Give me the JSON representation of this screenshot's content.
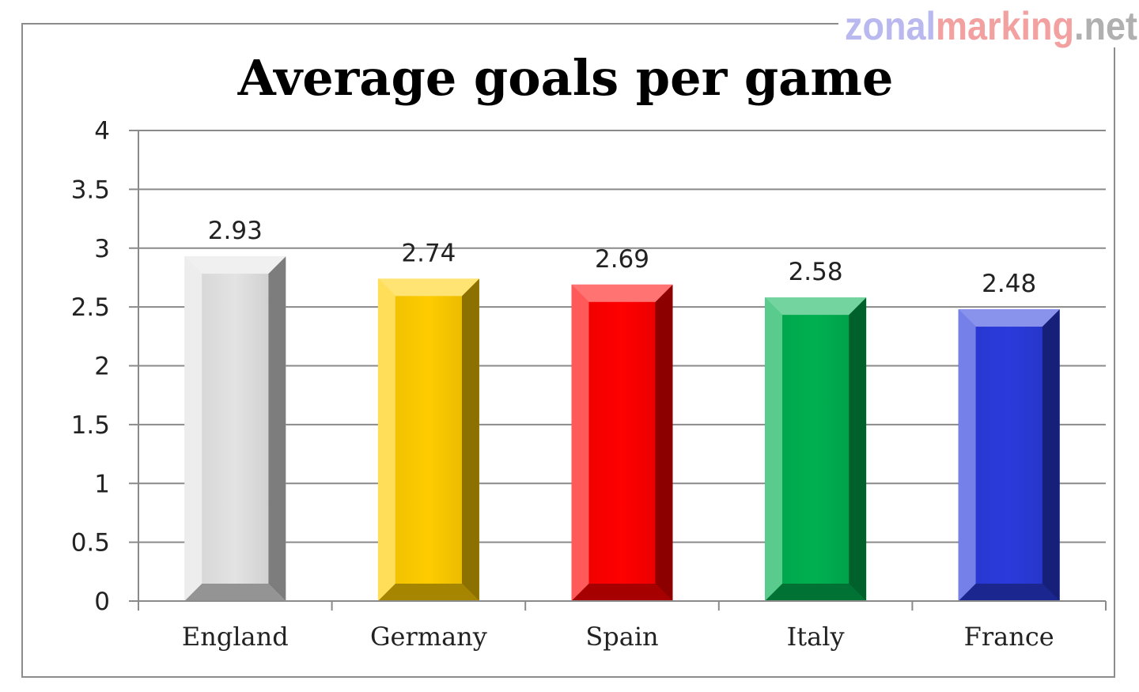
{
  "watermark": {
    "part1": "zonal",
    "part2": "marking",
    "part3": ".net",
    "colors": [
      "#b9b9f0",
      "#f3a0a0",
      "#b0b0b0"
    ]
  },
  "chart_data": {
    "type": "bar",
    "title": "Average goals per game",
    "xlabel": "",
    "ylabel": "",
    "categories": [
      "England",
      "Germany",
      "Spain",
      "Italy",
      "France"
    ],
    "values": [
      2.93,
      2.74,
      2.69,
      2.58,
      2.48
    ],
    "data_labels": [
      "2.93",
      "2.74",
      "2.69",
      "2.58",
      "2.48"
    ],
    "bar_colors": [
      "#e3e3e3",
      "#ffcc00",
      "#ff0000",
      "#00b050",
      "#2a3bdc"
    ],
    "ylim": [
      0,
      4
    ],
    "yticks": [
      0,
      0.5,
      1,
      1.5,
      2,
      2.5,
      3,
      3.5,
      4
    ],
    "ytick_labels": [
      "0",
      "0.5",
      "1",
      "1.5",
      "2",
      "2.5",
      "3",
      "3.5",
      "4"
    ],
    "grid": true,
    "legend": "none"
  }
}
